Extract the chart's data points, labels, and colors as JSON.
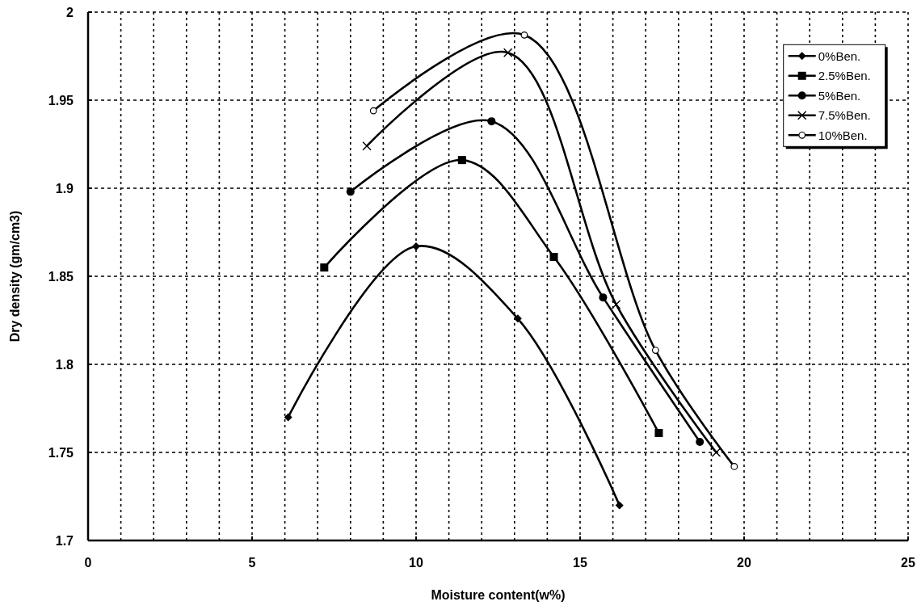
{
  "chart_data": {
    "type": "line",
    "xlabel": "Moisture content(w%)",
    "ylabel": "Dry density (gm/cm3)",
    "xlim": [
      0,
      25
    ],
    "ylim": [
      1.7,
      2
    ],
    "xticks": [
      0,
      {
        "value": 1,
        "label": null
      },
      {
        "value": 2,
        "label": null
      },
      {
        "value": 3,
        "label": null
      },
      {
        "value": 4,
        "label": null
      },
      5,
      {
        "value": 6,
        "label": null
      },
      {
        "value": 7,
        "label": null
      },
      {
        "value": 8,
        "label": null
      },
      {
        "value": 9,
        "label": null
      },
      10,
      {
        "value": 11,
        "label": null
      },
      {
        "value": 12,
        "label": null
      },
      {
        "value": 13,
        "label": null
      },
      {
        "value": 14,
        "label": null
      },
      15,
      {
        "value": 16,
        "label": null
      },
      {
        "value": 17,
        "label": null
      },
      {
        "value": 18,
        "label": null
      },
      {
        "value": 19,
        "label": null
      },
      20,
      {
        "value": 21,
        "label": null
      },
      {
        "value": 22,
        "label": null
      },
      {
        "value": 23,
        "label": null
      },
      {
        "value": 24,
        "label": null
      },
      25
    ],
    "yticks": [
      1.7,
      1.75,
      1.8,
      1.85,
      1.9,
      1.95,
      2
    ],
    "grid": true,
    "legend": "top right",
    "line_style": "solid",
    "series": [
      {
        "name": "0%Ben.",
        "color": "#000000",
        "marker": "diamond",
        "x": [
          6.1,
          10,
          13.1,
          16.2
        ],
        "values": [
          1.77,
          1.867,
          1.826,
          1.72
        ]
      },
      {
        "name": "2.5%Ben.",
        "color": "#000000",
        "marker": "square",
        "x": [
          7.2,
          11.4,
          14.2,
          17.4
        ],
        "values": [
          1.855,
          1.916,
          1.861,
          1.761
        ]
      },
      {
        "name": "5%Ben.",
        "color": "#000000",
        "marker": "circle",
        "x": [
          8,
          12.3,
          15.7,
          18.65
        ],
        "values": [
          1.898,
          1.938,
          1.838,
          1.756
        ]
      },
      {
        "name": "7.5%Ben.",
        "color": "#000000",
        "marker": "cross",
        "x": [
          8.5,
          12.8,
          16.1,
          19.15
        ],
        "values": [
          1.924,
          1.977,
          1.834,
          1.75
        ]
      },
      {
        "name": "10%Ben.",
        "color": "#000000",
        "marker": "circle-open",
        "x": [
          8.7,
          13.3,
          17.3,
          19.7
        ],
        "values": [
          1.944,
          1.987,
          1.808,
          1.742
        ]
      }
    ]
  }
}
